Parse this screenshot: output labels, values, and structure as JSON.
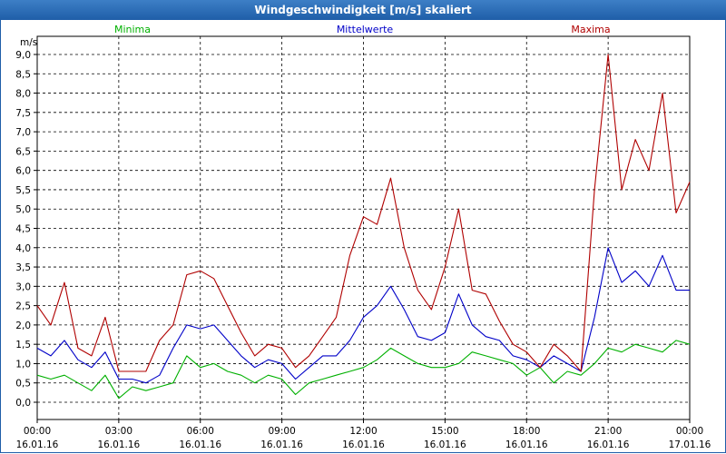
{
  "window": {
    "title": "Windgeschwindigkeit [m/s] skaliert"
  },
  "chart_data": {
    "type": "line",
    "title": "Windgeschwindigkeit [m/s] skaliert",
    "ylabel": "m/s",
    "ylim": [
      -0.5,
      9.3
    ],
    "yticks": [
      "0,0",
      "0,5",
      "1,0",
      "1,5",
      "2,0",
      "2,5",
      "3,0",
      "3,5",
      "4,0",
      "4,5",
      "5,0",
      "5,5",
      "6,0",
      "6,5",
      "7,0",
      "7,5",
      "8,0",
      "8,5",
      "9,0"
    ],
    "xticks": [
      {
        "time": "00:00",
        "date": "16.01.16"
      },
      {
        "time": "03:00",
        "date": "16.01.16"
      },
      {
        "time": "06:00",
        "date": "16.01.16"
      },
      {
        "time": "09:00",
        "date": "16.01.16"
      },
      {
        "time": "12:00",
        "date": "16.01.16"
      },
      {
        "time": "15:00",
        "date": "16.01.16"
      },
      {
        "time": "18:00",
        "date": "16.01.16"
      },
      {
        "time": "21:00",
        "date": "16.01.16"
      },
      {
        "time": "00:00",
        "date": "17.01.16"
      }
    ],
    "x_hours": [
      0,
      0.5,
      1,
      1.5,
      2,
      2.5,
      3,
      3.5,
      4,
      4.5,
      5,
      5.5,
      6,
      6.5,
      7,
      7.5,
      8,
      8.5,
      9,
      9.5,
      10,
      10.5,
      11,
      11.5,
      12,
      12.5,
      13,
      13.5,
      14,
      14.5,
      15,
      15.5,
      16,
      16.5,
      17,
      17.5,
      18,
      18.5,
      19,
      19.5,
      20,
      20.5,
      21,
      21.5,
      22,
      22.5,
      23,
      23.5,
      24
    ],
    "series": [
      {
        "name": "Minima",
        "color": "#00b000",
        "values": [
          0.7,
          0.6,
          0.7,
          0.5,
          0.3,
          0.7,
          0.1,
          0.4,
          0.3,
          0.4,
          0.5,
          1.2,
          0.9,
          1.0,
          0.8,
          0.7,
          0.5,
          0.7,
          0.6,
          0.2,
          0.5,
          0.6,
          0.7,
          0.8,
          0.9,
          1.1,
          1.4,
          1.2,
          1.0,
          0.9,
          0.9,
          1.0,
          1.3,
          1.2,
          1.1,
          1.0,
          0.7,
          0.9,
          0.5,
          0.8,
          0.7,
          1.0,
          1.4,
          1.3,
          1.5,
          1.4,
          1.3,
          1.6,
          1.5
        ]
      },
      {
        "name": "Mittelwerte",
        "color": "#0000c8",
        "values": [
          1.4,
          1.2,
          1.6,
          1.1,
          0.9,
          1.3,
          0.6,
          0.6,
          0.5,
          0.7,
          1.4,
          2.0,
          1.9,
          2.0,
          1.6,
          1.2,
          0.9,
          1.1,
          1.0,
          0.6,
          0.9,
          1.2,
          1.2,
          1.6,
          2.2,
          2.5,
          3.0,
          2.4,
          1.7,
          1.6,
          1.8,
          2.8,
          2.0,
          1.7,
          1.6,
          1.2,
          1.1,
          0.9,
          1.2,
          1.0,
          0.8,
          2.2,
          4.0,
          3.1,
          3.4,
          3.0,
          3.8,
          2.9,
          2.9
        ]
      },
      {
        "name": "Maxima",
        "color": "#b00000",
        "values": [
          2.5,
          2.0,
          3.1,
          1.4,
          1.2,
          2.2,
          0.8,
          0.8,
          0.8,
          1.6,
          2.0,
          3.3,
          3.4,
          3.2,
          2.5,
          1.8,
          1.2,
          1.5,
          1.4,
          0.9,
          1.2,
          1.7,
          2.2,
          3.8,
          4.8,
          4.6,
          5.8,
          4.0,
          2.9,
          2.4,
          3.5,
          5.0,
          2.9,
          2.8,
          2.1,
          1.5,
          1.3,
          0.9,
          1.5,
          1.2,
          0.8,
          5.5,
          9.0,
          5.5,
          6.8,
          6.0,
          8.0,
          4.9,
          5.7
        ]
      }
    ]
  }
}
